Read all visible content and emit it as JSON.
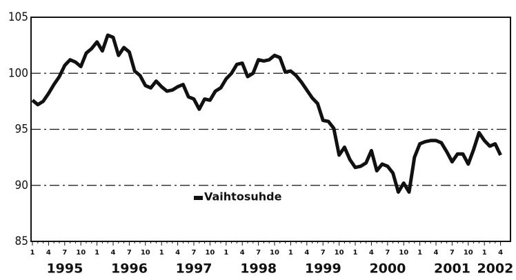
{
  "chart_data": {
    "type": "line",
    "categories": [
      "1",
      null,
      null,
      "4",
      null,
      null,
      "7",
      null,
      null,
      "10",
      null,
      null,
      "1",
      null,
      null,
      "4",
      null,
      null,
      "7",
      null,
      null,
      "10",
      null,
      null,
      "1",
      null,
      null,
      "4",
      null,
      null,
      "7",
      null,
      null,
      "10",
      null,
      null,
      "1",
      null,
      null,
      "4",
      null,
      null,
      "7",
      null,
      null,
      "10",
      null,
      null,
      "1",
      null,
      null,
      "4",
      null,
      null,
      "7",
      null,
      null,
      "10",
      null,
      null,
      "1",
      null,
      null,
      "4",
      null,
      null,
      "7",
      null,
      null,
      "10",
      null,
      null,
      "1",
      null,
      null,
      "4",
      null,
      null,
      "7",
      null,
      null,
      "10",
      null,
      null,
      "1",
      null,
      null,
      "4"
    ],
    "year_labels": [
      "1995",
      "1996",
      "1997",
      "1998",
      "1999",
      "2000",
      "2001",
      "2002"
    ],
    "series": [
      {
        "name": "Vaihtosuhde",
        "color": "#111111",
        "values": [
          97.6,
          97.2,
          97.5,
          98.2,
          99.0,
          99.7,
          100.7,
          101.2,
          101.0,
          100.6,
          101.8,
          102.2,
          102.8,
          102.0,
          103.4,
          103.2,
          101.6,
          102.3,
          101.9,
          100.2,
          99.8,
          98.9,
          98.7,
          99.3,
          98.8,
          98.4,
          98.5,
          98.8,
          99.0,
          97.9,
          97.7,
          96.8,
          97.7,
          97.6,
          98.4,
          98.7,
          99.5,
          100.0,
          100.8,
          100.9,
          99.7,
          100.0,
          101.2,
          101.1,
          101.2,
          101.6,
          101.4,
          100.1,
          100.2,
          99.8,
          99.2,
          98.5,
          97.8,
          97.3,
          95.8,
          95.7,
          95.1,
          92.7,
          93.4,
          92.3,
          91.6,
          91.7,
          92.0,
          93.1,
          91.3,
          91.9,
          91.7,
          91.1,
          89.4,
          90.2,
          89.4,
          92.5,
          93.7,
          93.9,
          94.0,
          94.0,
          93.8,
          93.0,
          92.1,
          92.8,
          92.8,
          91.9,
          93.2,
          94.7,
          94.0,
          93.5,
          93.7,
          92.7
        ]
      }
    ],
    "ylim": [
      85,
      105
    ],
    "yticks": [
      85,
      90,
      95,
      100,
      105
    ],
    "grid": true
  }
}
